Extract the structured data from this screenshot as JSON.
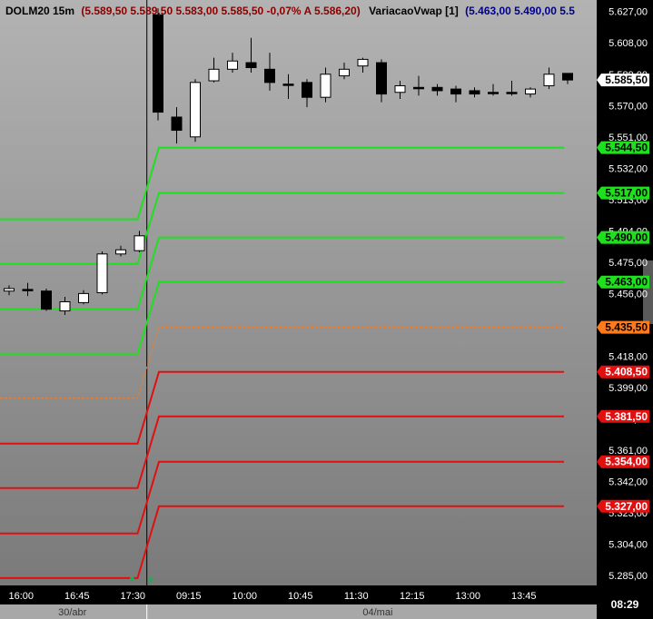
{
  "header": {
    "symbol": "DOLM20 15m",
    "ohlc": "(5.589,50   5.589,50   5.583,00   5.585,50   -0,07%   A 5.586,20)",
    "indicator": "VariacaoVwap [1]",
    "indicator_values": "(5.463,00  5.490,00  5.5"
  },
  "clock": "08:29",
  "colors": {
    "bg_top": "#b3b3b3",
    "bg_bottom": "#7a7a7a",
    "green": "#1fe01f",
    "red": "#e01010",
    "orange": "#ff7a1a",
    "last_price_bg": "#ffffff"
  },
  "chart_data": {
    "type": "candlestick",
    "ylim": [
      5279.0,
      5634.0
    ],
    "y_ticks": [
      {
        "label": "5.627,00",
        "value": 5627.0
      },
      {
        "label": "5.608,00",
        "value": 5608.0
      },
      {
        "label": "5.589,00",
        "value": 5589.0
      },
      {
        "label": "5.570,00",
        "value": 5570.0
      },
      {
        "label": "5.551,00",
        "value": 5551.0
      },
      {
        "label": "5.532,00",
        "value": 5532.0
      },
      {
        "label": "5.513,00",
        "value": 5513.0
      },
      {
        "label": "5.494,00",
        "value": 5494.0
      },
      {
        "label": "5.475,00",
        "value": 5475.0
      },
      {
        "label": "5.456,00",
        "value": 5456.0
      },
      {
        "label": "5.437,00",
        "value": 5437.0
      },
      {
        "label": "5.418,00",
        "value": 5418.0
      },
      {
        "label": "5.399,00",
        "value": 5399.0
      },
      {
        "label": "5.380,00",
        "value": 5380.0
      },
      {
        "label": "5.361,00",
        "value": 5361.0
      },
      {
        "label": "5.342,00",
        "value": 5342.0
      },
      {
        "label": "5.323,00",
        "value": 5323.0
      },
      {
        "label": "5.304,00",
        "value": 5304.0
      },
      {
        "label": "5.285,00",
        "value": 5285.0
      }
    ],
    "time_labels": [
      {
        "label": "16:00",
        "bar": 0.5
      },
      {
        "label": "16:45",
        "bar": 3.5
      },
      {
        "label": "17:30",
        "bar": 6.5
      },
      {
        "label": "09:15",
        "bar": 9.5
      },
      {
        "label": "10:00",
        "bar": 12.5
      },
      {
        "label": "10:45",
        "bar": 15.5
      },
      {
        "label": "11:30",
        "bar": 18.5
      },
      {
        "label": "12:15",
        "bar": 21.5
      },
      {
        "label": "13:00",
        "bar": 24.5
      },
      {
        "label": "13:45",
        "bar": 27.5
      }
    ],
    "date_labels": [
      {
        "label": "30/abr",
        "bar": 3.4
      },
      {
        "label": "04/mai",
        "bar": 19.8
      }
    ],
    "session_break_bar": 7.4,
    "candles": [
      {
        "o": 5457.5,
        "h": 5461.0,
        "l": 5455.0,
        "c": 5459.0
      },
      {
        "o": 5458.5,
        "h": 5462.5,
        "l": 5454.5,
        "c": 5458.5
      },
      {
        "o": 5457.5,
        "h": 5459.0,
        "l": 5445.5,
        "c": 5446.5
      },
      {
        "o": 5445.5,
        "h": 5454.0,
        "l": 5443.0,
        "c": 5451.0
      },
      {
        "o": 5450.5,
        "h": 5458.0,
        "l": 5449.5,
        "c": 5456.0
      },
      {
        "o": 5456.5,
        "h": 5481.5,
        "l": 5455.5,
        "c": 5480.0
      },
      {
        "o": 5480.0,
        "h": 5485.0,
        "l": 5478.5,
        "c": 5482.5
      },
      {
        "o": 5482.0,
        "h": 5494.0,
        "l": 5481.0,
        "c": 5491.0
      },
      {
        "o": 5625.0,
        "h": 5629.0,
        "l": 5561.0,
        "c": 5566.0
      },
      {
        "o": 5563.0,
        "h": 5569.0,
        "l": 5547.0,
        "c": 5555.0
      },
      {
        "o": 5551.0,
        "h": 5586.0,
        "l": 5548.0,
        "c": 5584.0
      },
      {
        "o": 5585.0,
        "h": 5599.0,
        "l": 5584.0,
        "c": 5592.0
      },
      {
        "o": 5592.0,
        "h": 5602.0,
        "l": 5590.0,
        "c": 5597.0
      },
      {
        "o": 5596.0,
        "h": 5611.0,
        "l": 5590.0,
        "c": 5593.0
      },
      {
        "o": 5592.0,
        "h": 5602.0,
        "l": 5579.0,
        "c": 5584.0
      },
      {
        "o": 5583.0,
        "h": 5589.0,
        "l": 5574.0,
        "c": 5583.0
      },
      {
        "o": 5584.0,
        "h": 5586.0,
        "l": 5569.0,
        "c": 5575.0
      },
      {
        "o": 5575.0,
        "h": 5593.0,
        "l": 5572.0,
        "c": 5589.0
      },
      {
        "o": 5588.0,
        "h": 5596.0,
        "l": 5586.0,
        "c": 5592.0
      },
      {
        "o": 5594.0,
        "h": 5599.0,
        "l": 5590.0,
        "c": 5598.0
      },
      {
        "o": 5596.0,
        "h": 5598.0,
        "l": 5572.0,
        "c": 5577.0
      },
      {
        "o": 5578.0,
        "h": 5585.0,
        "l": 5574.0,
        "c": 5582.0
      },
      {
        "o": 5581.0,
        "h": 5588.0,
        "l": 5576.0,
        "c": 5581.0
      },
      {
        "o": 5581.0,
        "h": 5583.0,
        "l": 5576.0,
        "c": 5579.0
      },
      {
        "o": 5580.0,
        "h": 5582.0,
        "l": 5572.0,
        "c": 5577.0
      },
      {
        "o": 5579.0,
        "h": 5581.0,
        "l": 5575.0,
        "c": 5577.0
      },
      {
        "o": 5578.0,
        "h": 5583.0,
        "l": 5576.0,
        "c": 5578.0
      },
      {
        "o": 5578.0,
        "h": 5585.0,
        "l": 5576.0,
        "c": 5578.0
      },
      {
        "o": 5577.0,
        "h": 5581.0,
        "l": 5575.0,
        "c": 5580.0
      },
      {
        "o": 5582.0,
        "h": 5593.0,
        "l": 5580.0,
        "c": 5589.0
      },
      {
        "o": 5589.5,
        "h": 5589.5,
        "l": 5583.0,
        "c": 5585.5
      }
    ],
    "bands": [
      {
        "name": "band-green-1",
        "color": "green",
        "dash": false,
        "prev": 5501.0,
        "curr": 5544.5,
        "label": "5.544,50"
      },
      {
        "name": "band-green-2",
        "color": "green",
        "dash": false,
        "prev": 5474.0,
        "curr": 5517.0,
        "label": "5.517,00"
      },
      {
        "name": "band-green-3",
        "color": "green",
        "dash": false,
        "prev": 5446.5,
        "curr": 5490.0,
        "label": "5.490,00"
      },
      {
        "name": "band-green-4",
        "color": "green",
        "dash": false,
        "prev": 5419.5,
        "curr": 5463.0,
        "label": "5.463,00"
      },
      {
        "name": "band-orange-mid",
        "color": "orange",
        "dash": true,
        "prev": 5392.5,
        "curr": 5435.5,
        "label": "5.435,50"
      },
      {
        "name": "band-red-1",
        "color": "red",
        "dash": false,
        "prev": 5365.0,
        "curr": 5408.5,
        "label": "5.408,50"
      },
      {
        "name": "band-red-2",
        "color": "red",
        "dash": false,
        "prev": 5338.0,
        "curr": 5381.5,
        "label": "5.381,50"
      },
      {
        "name": "band-red-3",
        "color": "red",
        "dash": false,
        "prev": 5310.5,
        "curr": 5354.0,
        "label": "5.354,00"
      },
      {
        "name": "band-red-4",
        "color": "red",
        "dash": false,
        "prev": 5283.5,
        "curr": 5327.0,
        "label": "5.327,00"
      }
    ],
    "last_price": {
      "value": 5585.5,
      "label": "5.585,50"
    },
    "markers": [
      {
        "bar": 6.6,
        "value": 5283.0
      },
      {
        "bar": 7.6,
        "value": 5282.5
      }
    ]
  }
}
